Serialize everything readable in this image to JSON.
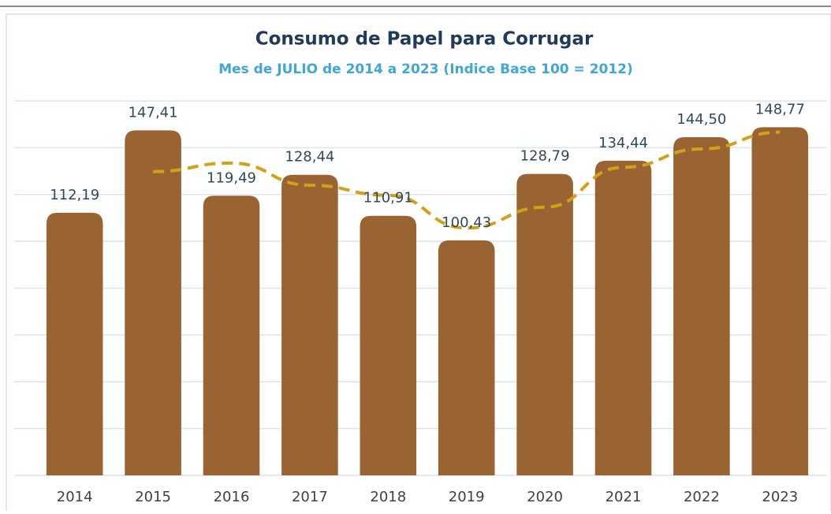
{
  "chart_data": {
    "type": "bar",
    "title": "Consumo de Papel para  Corrugar",
    "subtitle": "Mes de JULIO de 2014 a 2023 (Indice Base 100 = 2012)",
    "categories": [
      "2014",
      "2015",
      "2016",
      "2017",
      "2018",
      "2019",
      "2020",
      "2021",
      "2022",
      "2023"
    ],
    "values": [
      112.19,
      147.41,
      119.49,
      128.44,
      110.91,
      100.43,
      128.79,
      134.44,
      144.5,
      148.77
    ],
    "value_labels": [
      "112,19",
      "147,41",
      "119,49",
      "128,44",
      "110,91",
      "100,43",
      "128,79",
      "134,44",
      "144,50",
      "148,77"
    ],
    "color": "#9a6432",
    "ylim": [
      0,
      160
    ],
    "yticks": [
      0,
      20,
      40,
      60,
      80,
      100,
      120,
      140,
      160
    ],
    "grid": true,
    "trendline": {
      "type": "moving_average",
      "period": 2,
      "color": "#d4a017"
    }
  }
}
